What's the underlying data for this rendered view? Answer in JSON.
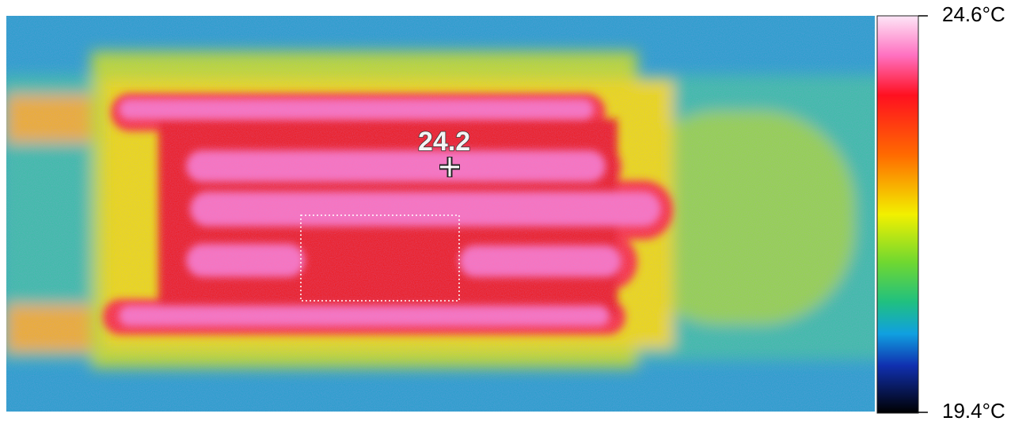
{
  "measurement": {
    "spot_label": "24.2"
  },
  "scale": {
    "max_label": "24.6°C",
    "min_label": "19.4°C"
  }
}
